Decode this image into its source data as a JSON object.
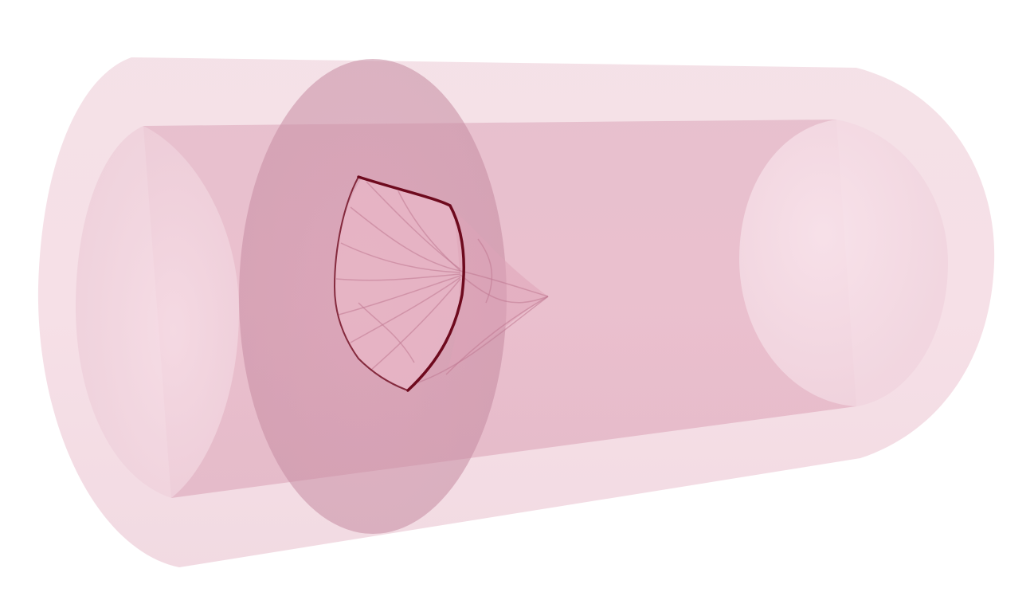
{
  "scene": {
    "subject": "translucent-cylinder-with-valve-leaflets",
    "colors": {
      "background": "#ffffff",
      "outer_shell": "#efc3d0",
      "inner_lumen": "#e2a3b8",
      "far_cap": "#f5dde5",
      "cross_section_disc": "#c98aa2",
      "valve_surface": "#e7b2c4",
      "valve_rim": "#6e0a1e",
      "valve_lines": "#c07892"
    }
  }
}
